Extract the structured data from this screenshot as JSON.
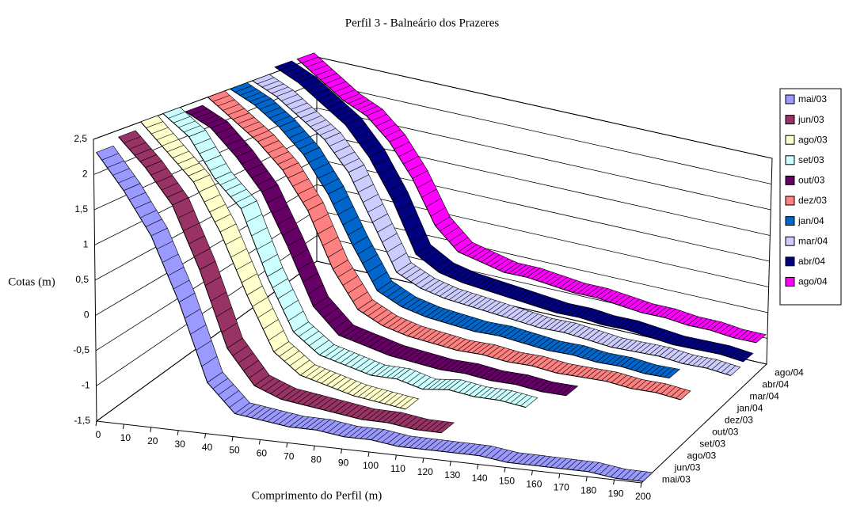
{
  "chart_data": {
    "type": "ribbon3d",
    "title": "Perfil 3 - Balneário dos Prazeres",
    "x_label": "Comprimento do Perfil (m)",
    "y_label": "Cotas (m)",
    "x": [
      0,
      10,
      20,
      30,
      40,
      50,
      60,
      70,
      80,
      90,
      100,
      110,
      120,
      130,
      140,
      150,
      160,
      170,
      180,
      190,
      200
    ],
    "ylim": [
      -1.5,
      2.5
    ],
    "yticks": [
      {
        "value": -1.5,
        "label": "-1,5"
      },
      -1,
      {
        "value": -0.5,
        "label": "-0,5"
      },
      0,
      {
        "value": 0.5,
        "label": "0,5"
      },
      1,
      {
        "value": 1.5,
        "label": "1,5"
      },
      2,
      {
        "value": 2.5,
        "label": "2,5"
      }
    ],
    "grid": true,
    "legend": "right",
    "series": [
      {
        "name": "mai/03",
        "color": "#9999ff",
        "values": [
          2.3,
          1.8,
          1.2,
          0.3,
          -0.8,
          -1.2,
          -1.25,
          -1.3,
          -1.3,
          -1.35,
          -1.35,
          -1.4,
          -1.4,
          -1.4,
          -1.4,
          -1.45,
          -1.45,
          -1.45,
          -1.45,
          -1.5,
          -1.5
        ]
      },
      {
        "name": "jun/03",
        "color": "#993366",
        "values": [
          2.4,
          2.0,
          1.5,
          0.6,
          -0.5,
          -1.0,
          -1.15,
          -1.2,
          -1.25,
          -1.3,
          -1.3,
          -1.35,
          -1.35,
          null,
          null,
          null,
          null,
          null,
          null,
          null,
          null
        ]
      },
      {
        "name": "ago/03",
        "color": "#ffffcc",
        "values": [
          2.5,
          2.1,
          1.7,
          1.0,
          0.1,
          -0.7,
          -1.0,
          -1.1,
          -1.2,
          -1.25,
          -1.3,
          null,
          null,
          null,
          null,
          null,
          null,
          null,
          null,
          null,
          null
        ]
      },
      {
        "name": "set/03",
        "color": "#ccffff",
        "values": [
          2.5,
          2.2,
          1.6,
          1.2,
          0.2,
          -0.6,
          -0.9,
          -1.0,
          -1.1,
          -1.1,
          -1.2,
          -1.15,
          -1.2,
          -1.2,
          -1.25,
          null,
          null,
          null,
          null,
          null,
          null
        ]
      },
      {
        "name": "out/03",
        "color": "#660066",
        "values": [
          2.4,
          2.2,
          1.8,
          1.3,
          0.5,
          -0.4,
          -0.8,
          -0.9,
          -1.0,
          -1.05,
          -1.1,
          -1.1,
          -1.15,
          -1.15,
          -1.2,
          -1.2,
          null,
          null,
          null,
          null,
          null
        ]
      },
      {
        "name": "dez/03",
        "color": "#ff8080",
        "values": [
          2.5,
          2.2,
          1.9,
          1.5,
          0.9,
          0.0,
          -0.6,
          -0.8,
          -0.9,
          -0.95,
          -1.0,
          -1.0,
          -1.05,
          -1.05,
          -1.1,
          -1.1,
          -1.1,
          -1.15,
          -1.15,
          -1.2,
          null
        ]
      },
      {
        "name": "jan/04",
        "color": "#0066cc",
        "values": [
          2.5,
          2.3,
          2.0,
          1.6,
          1.0,
          0.2,
          -0.5,
          -0.7,
          -0.8,
          -0.85,
          -0.9,
          -0.9,
          -0.95,
          -1.0,
          -1.0,
          -1.05,
          -1.05,
          -1.1,
          -1.1,
          null,
          null
        ]
      },
      {
        "name": "mar/04",
        "color": "#ccccff",
        "values": [
          2.5,
          2.3,
          2.0,
          1.7,
          1.2,
          0.4,
          -0.4,
          -0.6,
          -0.7,
          -0.75,
          -0.8,
          -0.85,
          -0.9,
          -0.9,
          -0.95,
          -1.0,
          -1.0,
          -1.0,
          -1.05,
          -1.05,
          -1.1
        ]
      },
      {
        "name": "abr/04",
        "color": "#000080",
        "values": [
          2.6,
          2.4,
          2.1,
          1.8,
          1.3,
          0.6,
          -0.3,
          -0.55,
          -0.65,
          -0.7,
          -0.75,
          -0.8,
          -0.85,
          -0.85,
          -0.9,
          -0.9,
          -0.95,
          -1.0,
          -1.0,
          -1.0,
          -1.05
        ]
      },
      {
        "name": "ago/04",
        "color": "#ff00ff",
        "values": [
          2.6,
          2.3,
          2.0,
          1.8,
          1.4,
          0.8,
          0.0,
          -0.4,
          -0.5,
          -0.6,
          -0.6,
          -0.65,
          -0.7,
          -0.7,
          -0.75,
          -0.8,
          -0.8,
          -0.85,
          -0.85,
          -0.9,
          -0.9
        ]
      }
    ]
  }
}
